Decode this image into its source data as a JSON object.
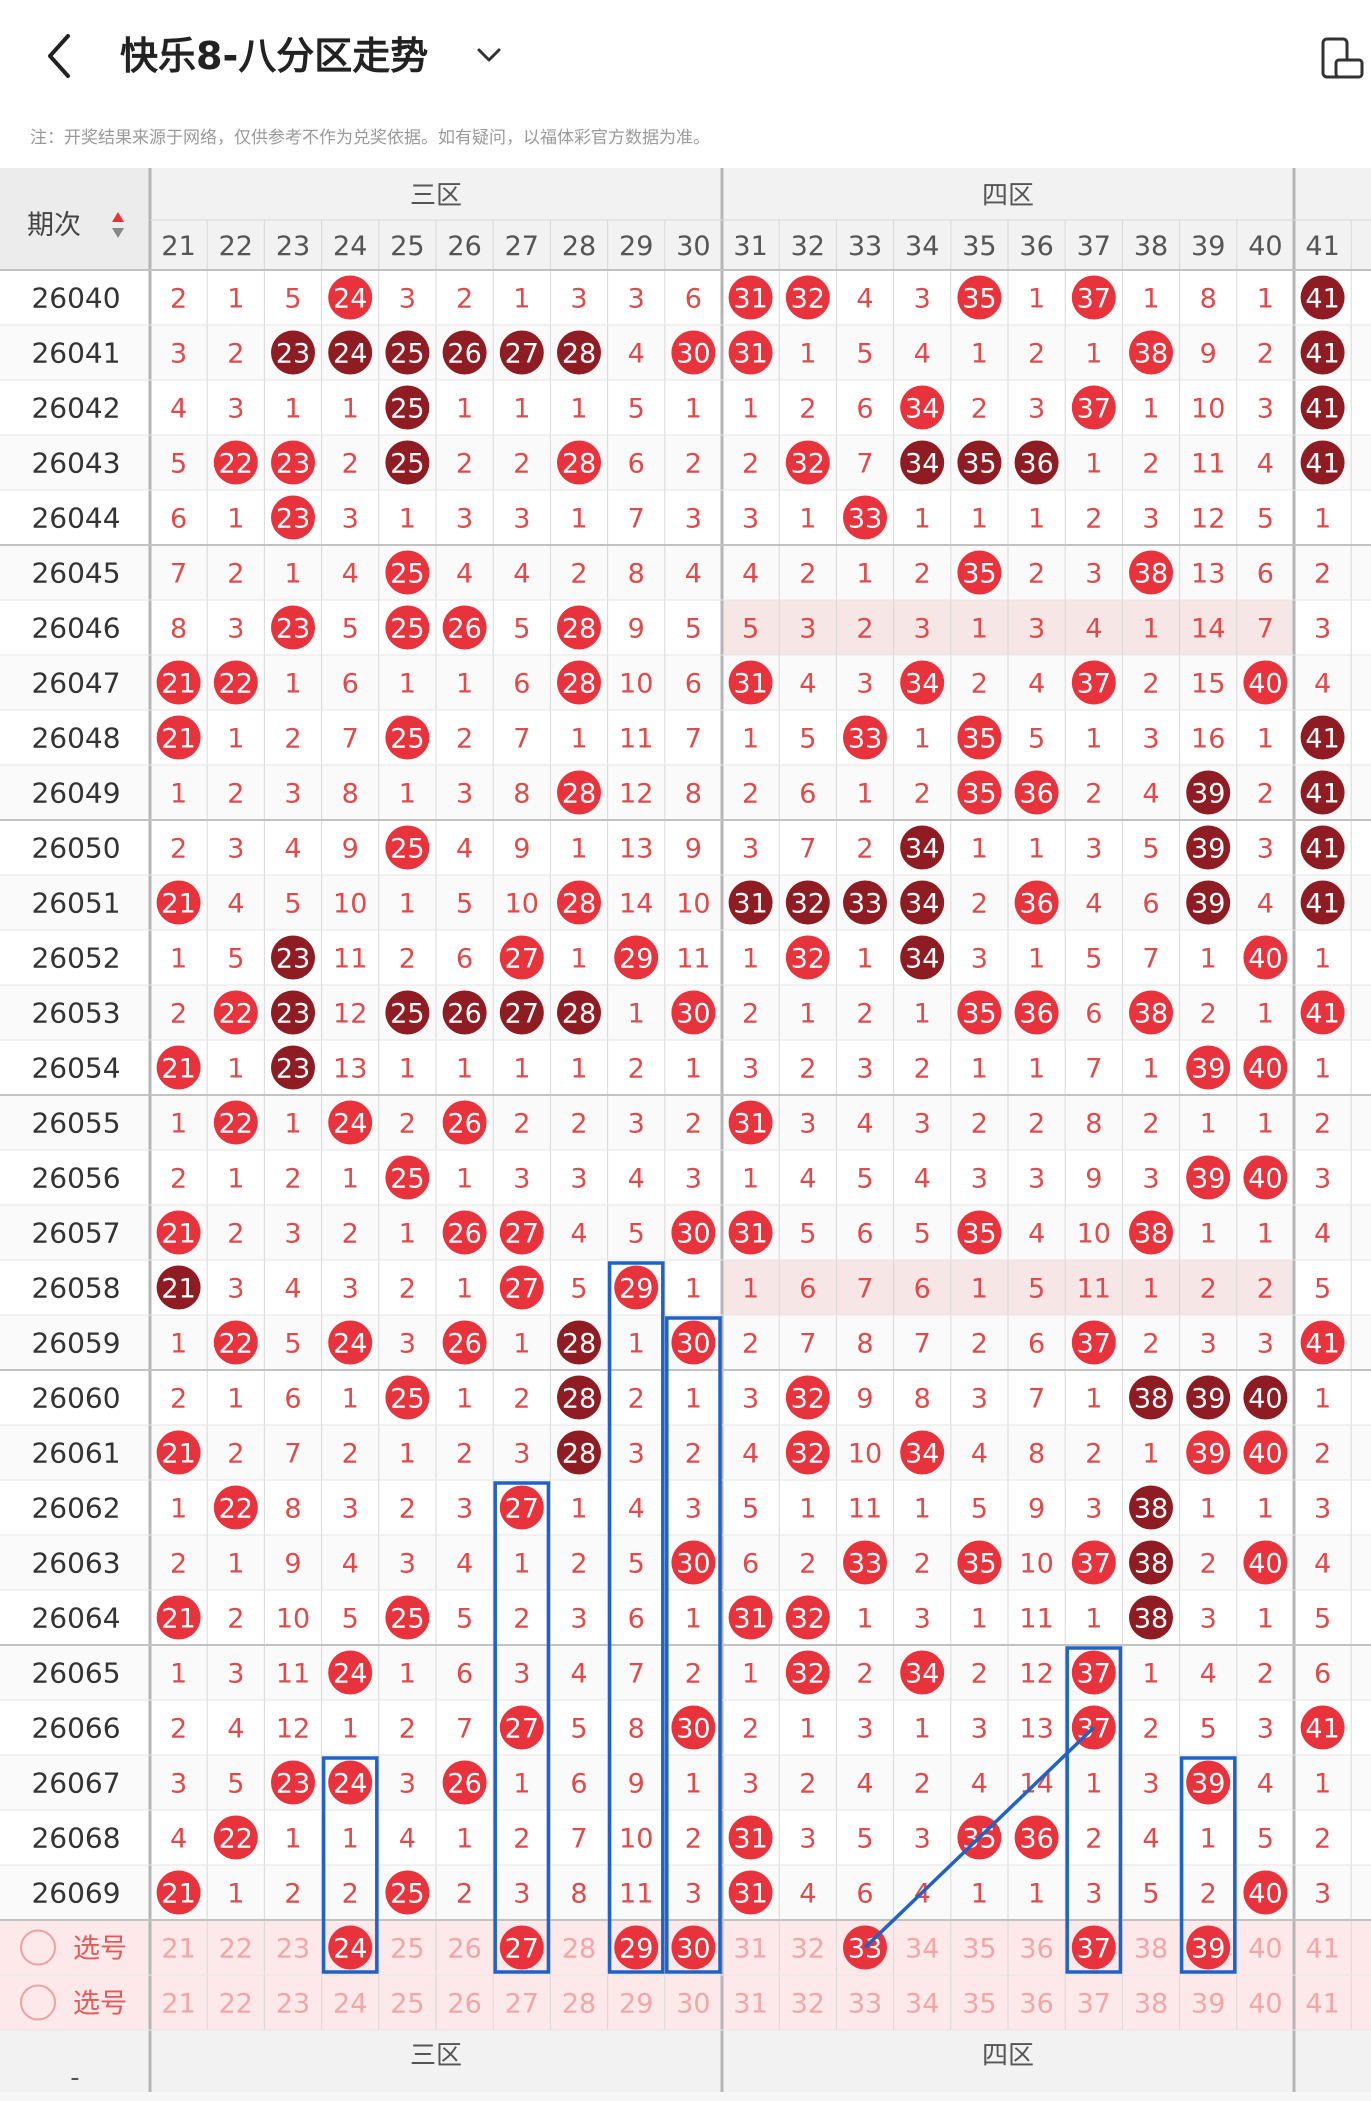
{
  "header": {
    "title": "快乐8-八分区走势",
    "back_icon": "chevron-left-icon",
    "dropdown_icon": "chevron-down-icon",
    "right_icon": "device-rotate-icon"
  },
  "notice": "注：开奖结果来源于网络，仅供参考不作为兑奖依据。如有疑问，以福体彩官方数据为准。",
  "table": {
    "period_header": "期次",
    "zones": [
      {
        "label": "三区",
        "columns": [
          21,
          22,
          23,
          24,
          25,
          26,
          27,
          28,
          29,
          30
        ]
      },
      {
        "label": "四区",
        "columns": [
          31,
          32,
          33,
          34,
          35,
          36,
          37,
          38,
          39,
          40
        ]
      }
    ],
    "partial_column": "41",
    "select_label": "选号",
    "footer_period": "-",
    "rows": [
      {
        "p": "26040",
        "v": [
          2,
          1,
          5,
          "R24",
          3,
          2,
          1,
          3,
          3,
          6,
          "R31",
          "R32",
          4,
          3,
          "R35",
          1,
          "R37",
          1,
          8,
          1,
          "D41"
        ]
      },
      {
        "p": "26041",
        "v": [
          3,
          2,
          "D23",
          "D24",
          "D25",
          "D26",
          "D27",
          "D28",
          4,
          "R30",
          "R31",
          1,
          5,
          4,
          1,
          2,
          1,
          "R38",
          9,
          2,
          "D41"
        ]
      },
      {
        "p": "26042",
        "v": [
          4,
          3,
          1,
          1,
          "D25",
          1,
          1,
          1,
          5,
          1,
          1,
          2,
          6,
          "R34",
          2,
          3,
          "R37",
          1,
          10,
          3,
          "D41"
        ]
      },
      {
        "p": "26043",
        "v": [
          5,
          "R22",
          "R23",
          2,
          "D25",
          2,
          2,
          "R28",
          6,
          2,
          2,
          "R32",
          7,
          "D34",
          "D35",
          "D36",
          1,
          2,
          11,
          4,
          "D41"
        ]
      },
      {
        "p": "26044",
        "v": [
          6,
          1,
          "R23",
          3,
          1,
          3,
          3,
          1,
          7,
          3,
          3,
          1,
          "R33",
          1,
          1,
          1,
          2,
          3,
          12,
          5,
          1
        ]
      },
      {
        "p": "26045",
        "v": [
          7,
          2,
          1,
          4,
          "R25",
          4,
          4,
          2,
          8,
          4,
          4,
          2,
          1,
          2,
          "R35",
          2,
          3,
          "R38",
          13,
          6,
          2
        ]
      },
      {
        "p": "26046",
        "v": [
          8,
          3,
          "R23",
          5,
          "R25",
          "R26",
          5,
          "R28",
          9,
          5,
          5,
          3,
          2,
          3,
          1,
          3,
          4,
          1,
          14,
          7,
          3
        ],
        "hl": true
      },
      {
        "p": "26047",
        "v": [
          "R21",
          "R22",
          1,
          6,
          1,
          1,
          6,
          "R28",
          10,
          6,
          "R31",
          4,
          3,
          "R34",
          2,
          4,
          "R37",
          2,
          15,
          "R40",
          4
        ]
      },
      {
        "p": "26048",
        "v": [
          "R21",
          1,
          2,
          7,
          "R25",
          2,
          7,
          1,
          11,
          7,
          1,
          5,
          "R33",
          1,
          "R35",
          5,
          1,
          3,
          16,
          1,
          "D41"
        ]
      },
      {
        "p": "26049",
        "v": [
          1,
          2,
          3,
          8,
          1,
          3,
          8,
          "R28",
          12,
          8,
          2,
          6,
          1,
          2,
          "R35",
          "R36",
          2,
          4,
          "D39",
          2,
          "D41"
        ]
      },
      {
        "p": "26050",
        "v": [
          2,
          3,
          4,
          9,
          "R25",
          4,
          9,
          1,
          13,
          9,
          3,
          7,
          2,
          "D34",
          1,
          1,
          3,
          5,
          "D39",
          3,
          "D41"
        ]
      },
      {
        "p": "26051",
        "v": [
          "R21",
          4,
          5,
          10,
          1,
          5,
          10,
          "R28",
          14,
          10,
          "D31",
          "D32",
          "D33",
          "D34",
          2,
          "R36",
          4,
          6,
          "D39",
          4,
          "D41"
        ]
      },
      {
        "p": "26052",
        "v": [
          1,
          5,
          "D23",
          11,
          2,
          6,
          "R27",
          1,
          "R29",
          11,
          1,
          "R32",
          1,
          "D34",
          3,
          1,
          5,
          7,
          1,
          "R40",
          1
        ]
      },
      {
        "p": "26053",
        "v": [
          2,
          "R22",
          "D23",
          12,
          "D25",
          "D26",
          "D27",
          "D28",
          1,
          "R30",
          2,
          1,
          2,
          1,
          "R35",
          "R36",
          6,
          "R38",
          2,
          1,
          "R41"
        ]
      },
      {
        "p": "26054",
        "v": [
          "R21",
          1,
          "D23",
          13,
          1,
          1,
          1,
          1,
          2,
          1,
          3,
          2,
          3,
          2,
          1,
          1,
          7,
          1,
          "R39",
          "R40",
          1
        ]
      },
      {
        "p": "26055",
        "v": [
          1,
          "R22",
          1,
          "R24",
          2,
          "R26",
          2,
          2,
          3,
          2,
          "R31",
          3,
          4,
          3,
          2,
          2,
          8,
          2,
          1,
          1,
          2
        ]
      },
      {
        "p": "26056",
        "v": [
          2,
          1,
          2,
          1,
          "R25",
          1,
          3,
          3,
          4,
          3,
          1,
          4,
          5,
          4,
          3,
          3,
          9,
          3,
          "R39",
          "R40",
          3
        ]
      },
      {
        "p": "26057",
        "v": [
          "R21",
          2,
          3,
          2,
          1,
          "R26",
          "R27",
          4,
          5,
          "R30",
          "R31",
          5,
          6,
          5,
          "R35",
          4,
          10,
          "R38",
          1,
          1,
          4
        ]
      },
      {
        "p": "26058",
        "v": [
          "D21",
          3,
          4,
          3,
          2,
          1,
          "R27",
          5,
          "R29",
          1,
          1,
          6,
          7,
          6,
          1,
          5,
          11,
          1,
          2,
          2,
          5
        ],
        "hl": true
      },
      {
        "p": "26059",
        "v": [
          1,
          "R22",
          5,
          "R24",
          3,
          "R26",
          1,
          "D28",
          1,
          "R30",
          2,
          7,
          8,
          7,
          2,
          6,
          "R37",
          2,
          3,
          3,
          "R41"
        ]
      },
      {
        "p": "26060",
        "v": [
          2,
          1,
          6,
          1,
          "R25",
          1,
          2,
          "D28",
          2,
          1,
          3,
          "R32",
          9,
          8,
          3,
          7,
          1,
          "D38",
          "D39",
          "D40",
          1
        ]
      },
      {
        "p": "26061",
        "v": [
          "R21",
          2,
          7,
          2,
          1,
          2,
          3,
          "D28",
          3,
          2,
          4,
          "R32",
          10,
          "R34",
          4,
          8,
          2,
          1,
          "R39",
          "R40",
          2
        ]
      },
      {
        "p": "26062",
        "v": [
          1,
          "R22",
          8,
          3,
          2,
          3,
          "R27",
          1,
          4,
          3,
          5,
          1,
          11,
          1,
          5,
          9,
          3,
          "D38",
          1,
          1,
          3
        ]
      },
      {
        "p": "26063",
        "v": [
          2,
          1,
          9,
          4,
          3,
          4,
          1,
          2,
          5,
          "R30",
          6,
          2,
          "R33",
          2,
          "R35",
          10,
          "R37",
          "D38",
          2,
          "R40",
          4
        ]
      },
      {
        "p": "26064",
        "v": [
          "R21",
          2,
          10,
          5,
          "R25",
          5,
          2,
          3,
          6,
          1,
          "R31",
          "R32",
          1,
          3,
          1,
          11,
          1,
          "D38",
          3,
          1,
          5
        ]
      },
      {
        "p": "26065",
        "v": [
          1,
          3,
          11,
          "R24",
          1,
          6,
          3,
          4,
          7,
          2,
          1,
          "R32",
          2,
          "R34",
          2,
          12,
          "R37",
          1,
          4,
          2,
          6
        ]
      },
      {
        "p": "26066",
        "v": [
          2,
          4,
          12,
          1,
          2,
          7,
          "R27",
          5,
          8,
          "R30",
          2,
          1,
          3,
          1,
          3,
          13,
          "R37",
          2,
          5,
          3,
          "R41"
        ]
      },
      {
        "p": "26067",
        "v": [
          3,
          5,
          "R23",
          "R24",
          3,
          "R26",
          1,
          6,
          9,
          1,
          3,
          2,
          4,
          2,
          4,
          14,
          1,
          3,
          "R39",
          4,
          1
        ]
      },
      {
        "p": "26068",
        "v": [
          4,
          "R22",
          1,
          1,
          4,
          1,
          2,
          7,
          10,
          2,
          "R31",
          3,
          5,
          3,
          "R35",
          "R36",
          2,
          4,
          1,
          5,
          2
        ]
      },
      {
        "p": "26069",
        "v": [
          "R21",
          1,
          2,
          2,
          "R25",
          2,
          3,
          8,
          11,
          3,
          "R31",
          4,
          6,
          4,
          1,
          1,
          3,
          5,
          2,
          "R40",
          3
        ]
      }
    ],
    "select_rows": [
      {
        "selected": [
          24,
          27,
          29,
          30,
          33,
          37,
          39
        ]
      },
      {
        "selected": []
      }
    ],
    "colors": {
      "red": "#e8323c",
      "dark": "#8e1c22",
      "text": "#e04a4a",
      "box": "#1f62c8",
      "grid": "#d8d8d8",
      "band": "#f2f2f2",
      "hlrow": "#f6e6e6",
      "selbg": "#fde9e9"
    }
  }
}
